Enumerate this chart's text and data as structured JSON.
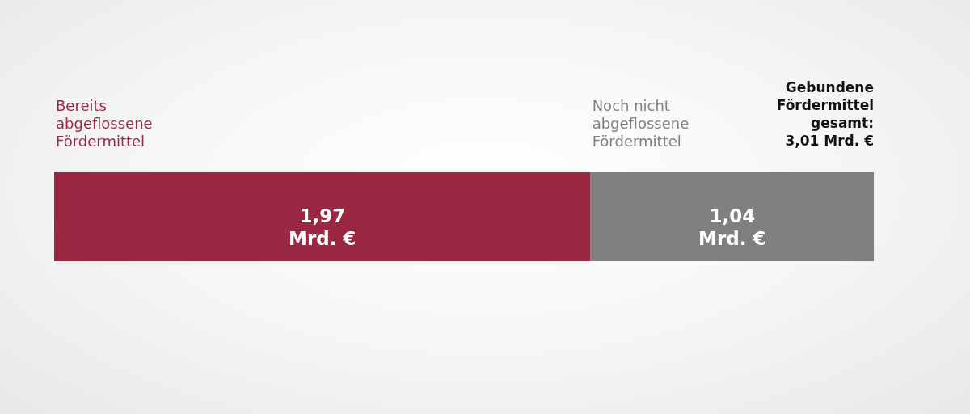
{
  "chart_data": {
    "type": "bar",
    "orientation": "horizontal",
    "stacked": true,
    "categories": [
      null
    ],
    "series": [
      {
        "name": "Bereits abgeflossene Fördermittel",
        "color": "#9b2743",
        "values": [
          1.97
        ],
        "value_labels": [
          "1,97 Mrd. €"
        ]
      },
      {
        "name": "Noch nicht abgeflossene Fördermittel",
        "color": "#808080",
        "values": [
          1.04
        ],
        "value_labels": [
          "1,04 Mrd. €"
        ]
      }
    ],
    "totals": [
      "Gebundene Fördermittel gesamt: 3,01 Mrd. €"
    ],
    "tick_labels": false
  }
}
